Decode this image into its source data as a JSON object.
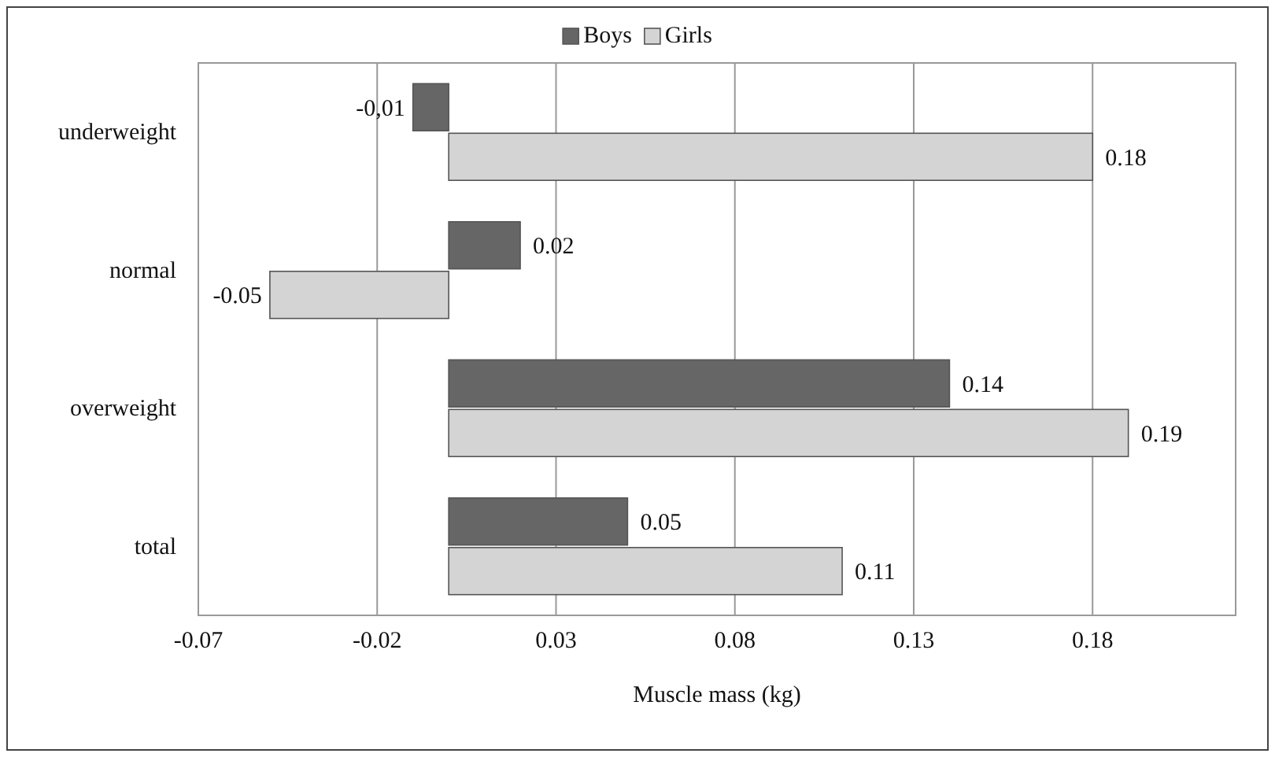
{
  "chart_data": {
    "type": "bar",
    "orientation": "horizontal",
    "xlabel": "Muscle mass (kg)",
    "categories": [
      "underweight",
      "normal",
      "overweight",
      "total"
    ],
    "series": [
      {
        "name": "Boys",
        "color": "#666666",
        "values": [
          -0.01,
          0.02,
          0.14,
          0.05
        ],
        "value_labels": [
          "-0,01",
          "0.02",
          "0.14",
          "0.05"
        ]
      },
      {
        "name": "Girls",
        "color": "#d4d4d4",
        "values": [
          0.18,
          -0.05,
          0.19,
          0.11
        ],
        "value_labels": [
          "0.18",
          "-0.05",
          "0.19",
          "0.11"
        ]
      }
    ],
    "xlim": [
      -0.07,
      0.22
    ],
    "xticks": [
      -0.07,
      -0.02,
      0.03,
      0.08,
      0.13,
      0.18
    ],
    "grid": "x",
    "legend": "top"
  }
}
